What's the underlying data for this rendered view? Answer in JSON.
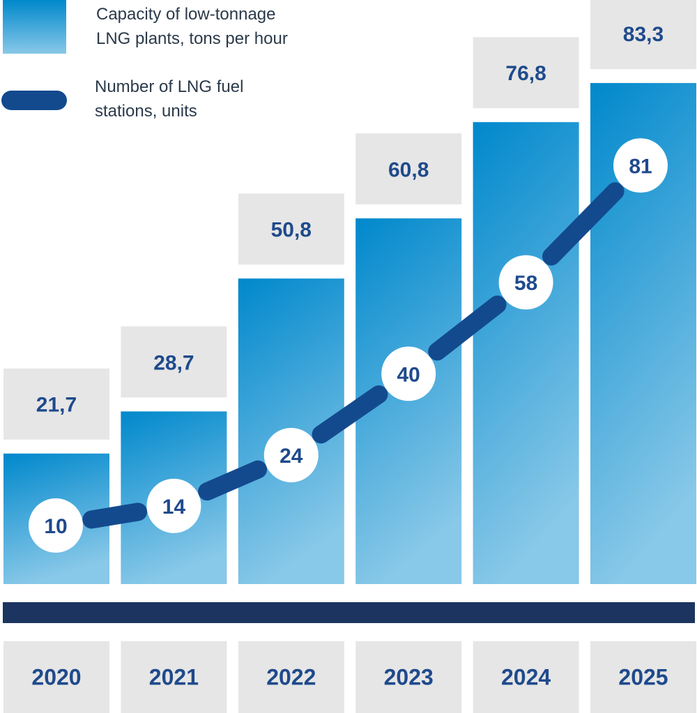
{
  "legend": {
    "capacity": {
      "line1": "Capacity of low-tonnage",
      "line2": "LNG plants, tons per hour"
    },
    "stations": {
      "line1": "Number of LNG fuel",
      "line2": "stations, units"
    }
  },
  "colors": {
    "bar_top": "#0088cc",
    "bar_bottom": "#88c8e8",
    "value_box": "#e6e6e6",
    "line": "#134a8e",
    "axis_band": "#1c3560",
    "year_box": "#e6e6e6",
    "label_text": "#1f4a8c",
    "circle_fill": "#ffffff"
  },
  "chart_data": {
    "type": "bar",
    "categories": [
      "2020",
      "2021",
      "2022",
      "2023",
      "2024",
      "2025"
    ],
    "series": [
      {
        "name": "Capacity of low-tonnage LNG plants, tons per hour",
        "type": "bar",
        "values": [
          21.7,
          28.7,
          50.8,
          60.8,
          76.8,
          83.3
        ],
        "labels": [
          "21,7",
          "28,7",
          "50,8",
          "60,8",
          "76,8",
          "83,3"
        ]
      },
      {
        "name": "Number of LNG fuel stations, units",
        "type": "line",
        "values": [
          10,
          14,
          24,
          40,
          58,
          81
        ],
        "labels": [
          "10",
          "14",
          "24",
          "40",
          "58",
          "81"
        ]
      }
    ],
    "title": "",
    "xlabel": "",
    "ylabel": "",
    "grid": false,
    "legend_position": "top-left"
  }
}
